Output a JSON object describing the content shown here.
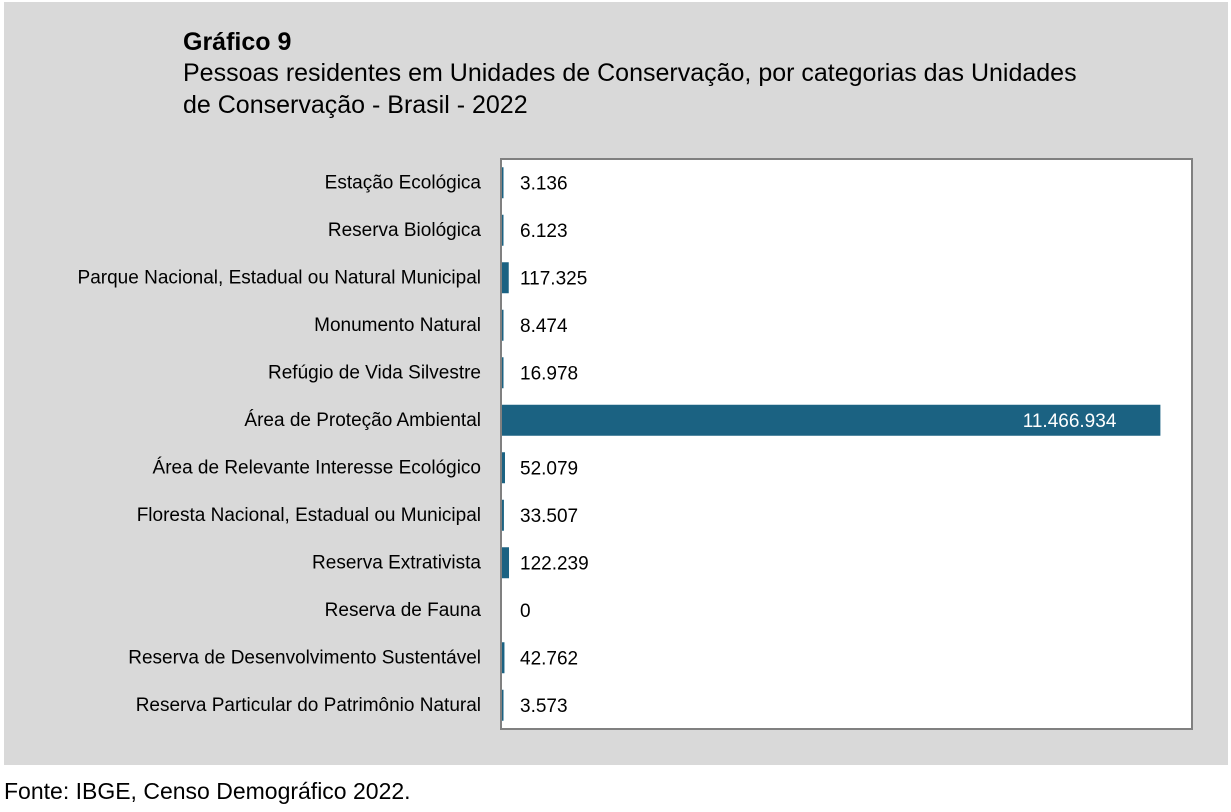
{
  "chart_label": "Gráfico 9",
  "chart_data": {
    "type": "bar",
    "orientation": "horizontal",
    "title": "Pessoas residentes em Unidades de Conservação, por categorias das Unidades de Conservação - Brasil - 2022",
    "categories": [
      "Estação Ecológica",
      "Reserva Biológica",
      "Parque Nacional, Estadual ou Natural Municipal",
      "Monumento Natural",
      "Refúgio de Vida Silvestre",
      "Área de Proteção Ambiental",
      "Área de Relevante Interesse Ecológico",
      "Floresta Nacional, Estadual ou Municipal",
      "Reserva Extrativista",
      "Reserva de Fauna",
      "Reserva de Desenvolvimento Sustentável",
      "Reserva Particular do Patrimônio Natural"
    ],
    "values": [
      3136,
      6123,
      117325,
      8474,
      16978,
      11466934,
      52079,
      33507,
      122239,
      0,
      42762,
      3573
    ],
    "value_labels": [
      "3.136",
      "6.123",
      "117.325",
      "8.474",
      "16.978",
      "11.466.934",
      "52.079",
      "33.507",
      "122.239",
      "0",
      "42.762",
      "3.573"
    ],
    "xlim": [
      0,
      12000000
    ],
    "grid": false,
    "legend": "none",
    "bar_color": "#1b6282"
  },
  "source": "Fonte: IBGE, Censo Demográfico 2022."
}
